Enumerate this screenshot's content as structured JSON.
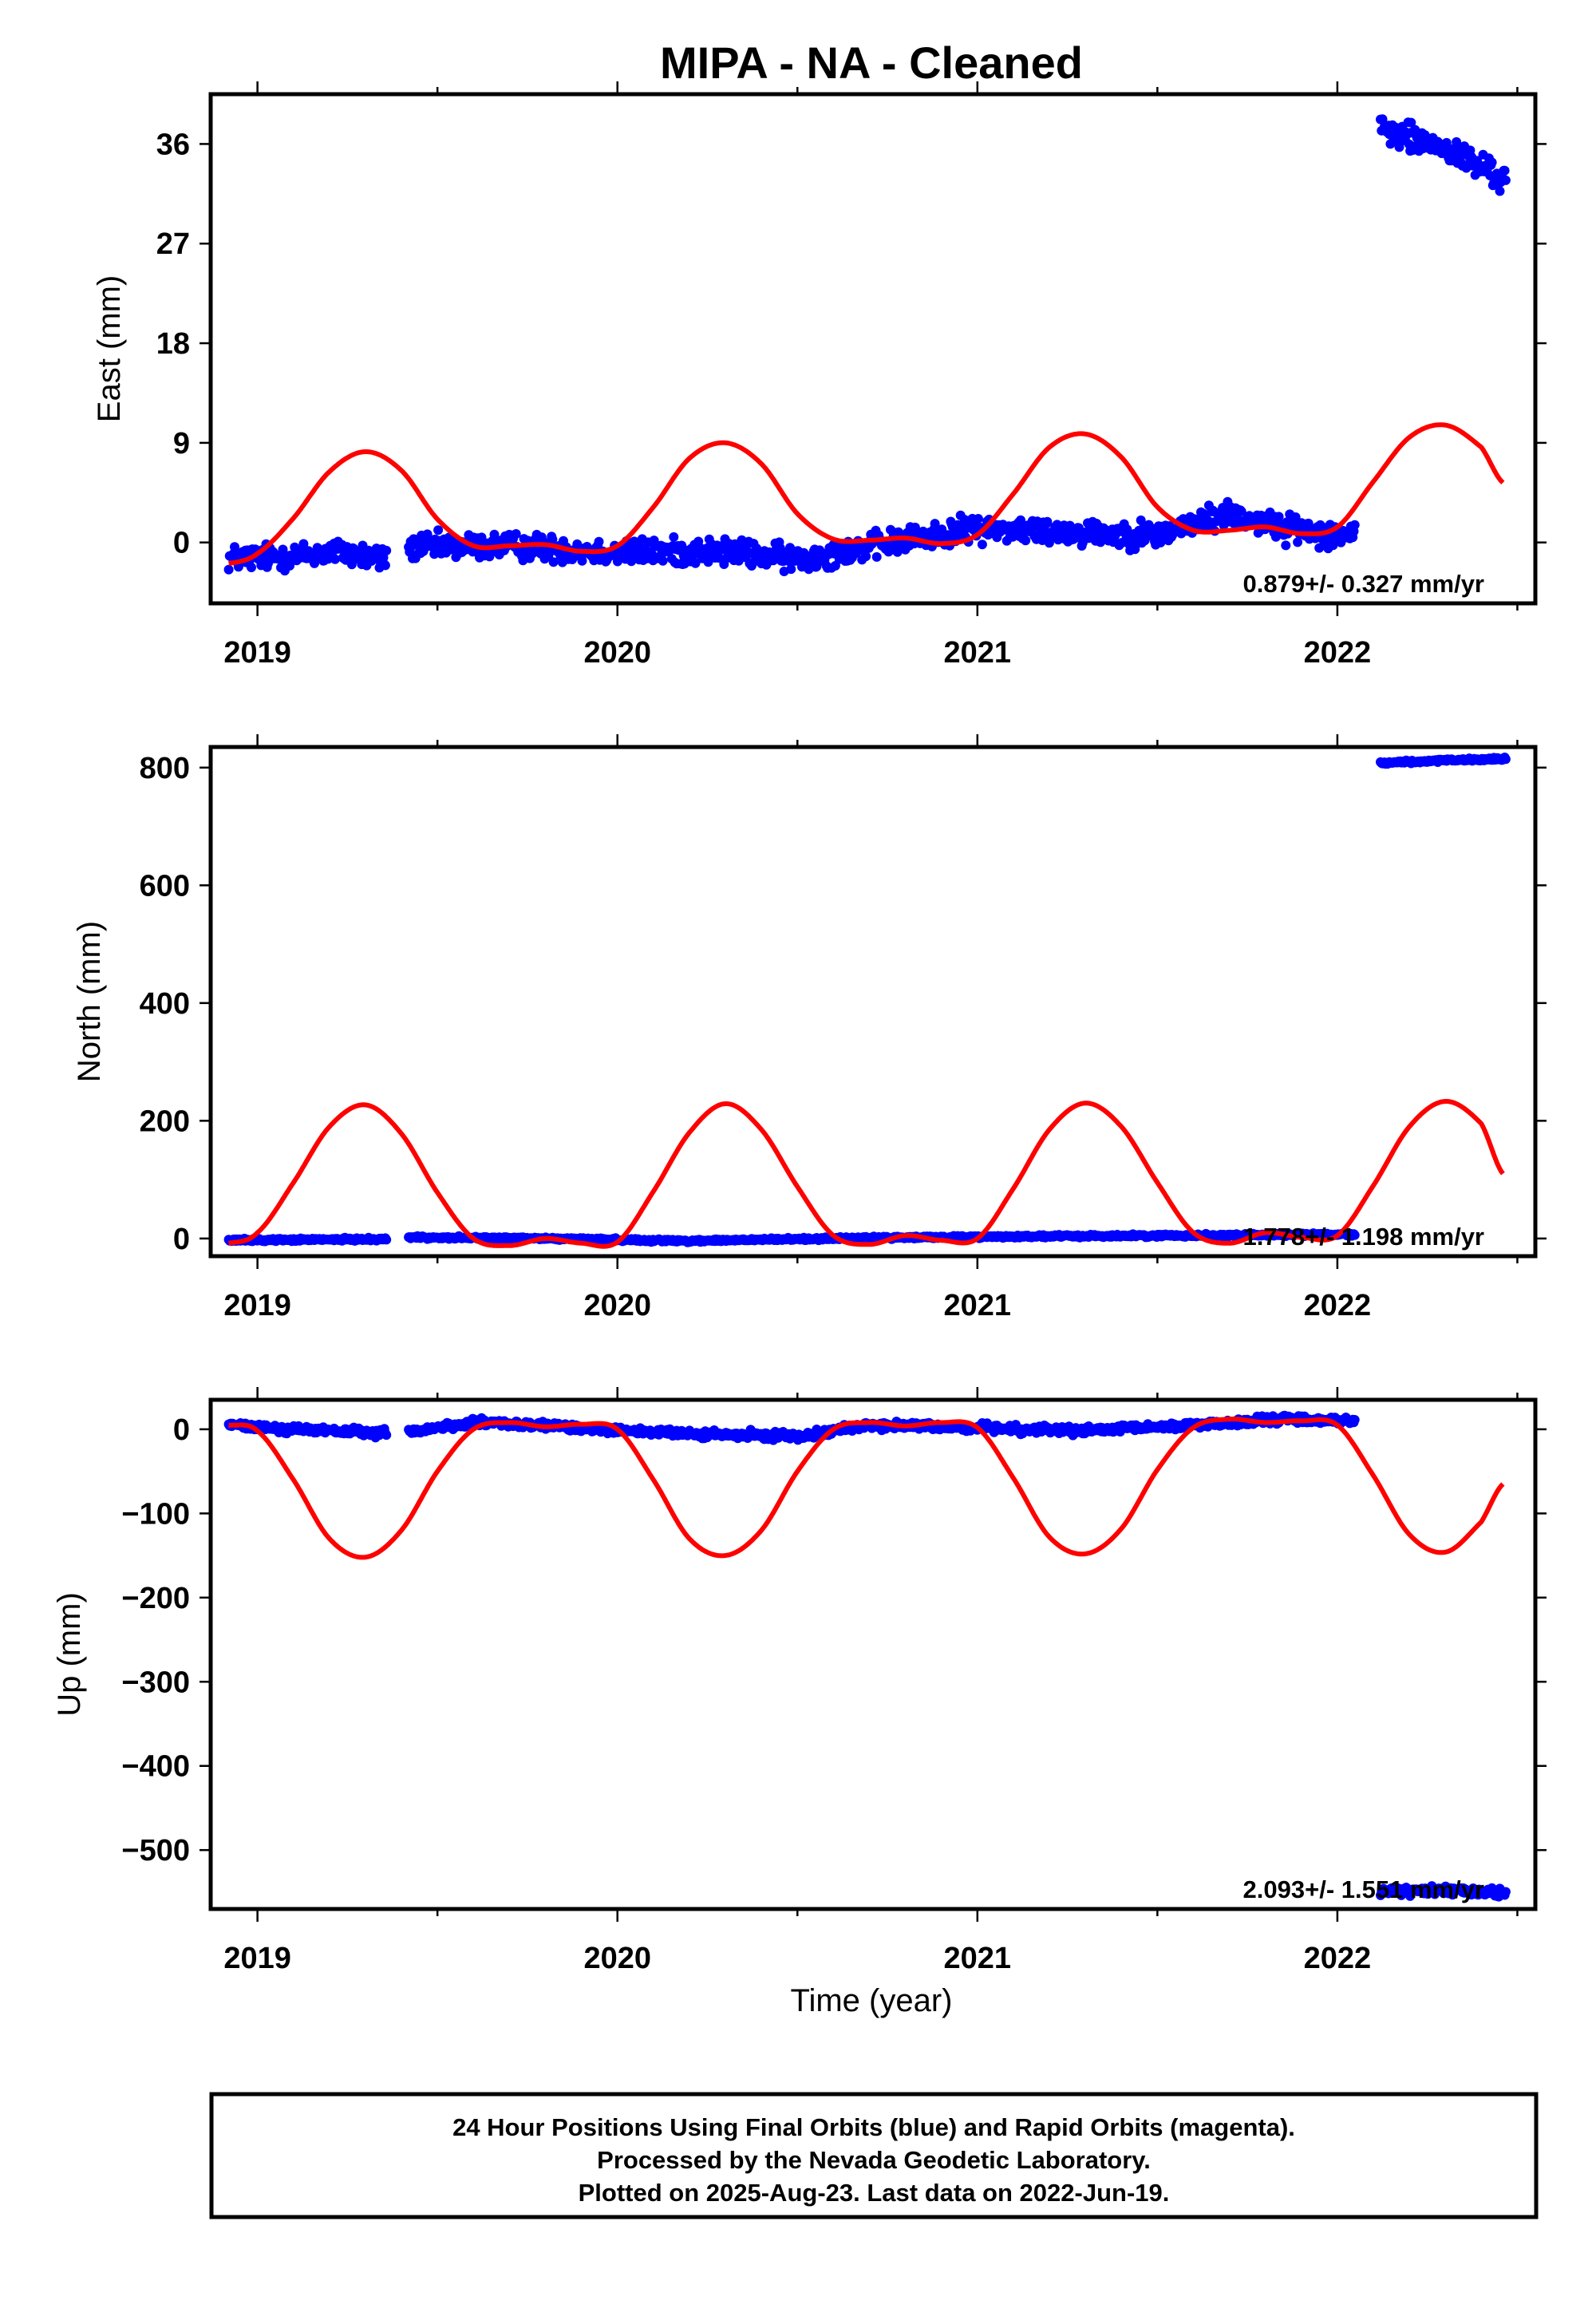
{
  "chart_data": {
    "title": "MIPA  - NA - Cleaned",
    "xlabel": "Time (year)",
    "xlim": [
      2018.87,
      2022.55
    ],
    "x_ticks": [
      2019,
      2020,
      2021,
      2022
    ],
    "x_tick_labels": [
      "2019",
      "2020",
      "2021",
      "2022"
    ],
    "x_minor_ticks": [
      2019.5,
      2020.5,
      2021.5,
      2022.5
    ],
    "panels": [
      {
        "id": "east",
        "type": "scatter",
        "ylabel": "East (mm)",
        "ylim": [
          -5.5,
          40.5
        ],
        "y_ticks": [
          0,
          9,
          18,
          27,
          36
        ],
        "y_tick_labels": [
          "0",
          "9",
          "18",
          "27",
          "36"
        ],
        "rate_label": "0.879+/- 0.327 mm/yr",
        "series": [
          {
            "kind": "points",
            "color": "#0000ff",
            "segments": [
              {
                "x": [
                  2018.92,
                  2019.12,
                  2019.22,
                  2019.36
                ],
                "y": [
                  -1.4,
                  -1.2,
                  -0.8,
                  -1.6
                ],
                "noise": 1.0
              },
              {
                "x": [
                  2019.42,
                  2019.7,
                  2020.0,
                  2020.3,
                  2020.5,
                  2020.8,
                  2021.0,
                  2021.2,
                  2021.5,
                  2021.7,
                  2021.85,
                  2022.05
                ],
                "y": [
                  -0.4,
                  -0.3,
                  -0.9,
                  -0.8,
                  -1.5,
                  0.2,
                  1.3,
                  1.0,
                  0.7,
                  2.6,
                  1.3,
                  0.6
                ],
                "noise": 1.0
              },
              {
                "x": [
                  2022.12,
                  2022.3,
                  2022.47
                ],
                "y": [
                  37.3,
                  35.5,
                  32.8
                ],
                "noise": 1.1
              }
            ]
          },
          {
            "kind": "fit",
            "color": "#ff0000",
            "x": [
              2018.92,
              2019.0,
              2019.1,
              2019.2,
              2019.3,
              2019.4,
              2019.5,
              2019.6,
              2019.7,
              2019.8,
              2019.9,
              2020.0,
              2020.1,
              2020.2,
              2020.3,
              2020.4,
              2020.5,
              2020.6,
              2020.7,
              2020.8,
              2020.9,
              2021.0,
              2021.1,
              2021.2,
              2021.3,
              2021.4,
              2021.5,
              2021.6,
              2021.7,
              2021.8,
              2021.9,
              2022.0,
              2022.1,
              2022.2,
              2022.3,
              2022.4,
              2022.46
            ],
            "y": [
              -1.9,
              -1.0,
              2.2,
              6.4,
              8.2,
              6.5,
              2.1,
              -0.3,
              -0.3,
              -0.2,
              -0.8,
              -0.3,
              3.2,
              7.6,
              9.0,
              7.1,
              2.6,
              0.3,
              0.2,
              0.4,
              -0.1,
              0.7,
              4.4,
              8.6,
              9.8,
              7.7,
              3.2,
              1.1,
              1.1,
              1.4,
              0.8,
              1.4,
              5.5,
              9.5,
              10.6,
              8.6,
              5.4
            ]
          }
        ]
      },
      {
        "id": "north",
        "type": "scatter",
        "ylabel": "North (mm)",
        "ylim": [
          -30,
          835
        ],
        "y_ticks": [
          0,
          200,
          400,
          600,
          800
        ],
        "y_tick_labels": [
          "0",
          "200",
          "400",
          "600",
          "800"
        ],
        "rate_label": "1.778+/- 1.198 mm/yr",
        "series": [
          {
            "kind": "points",
            "color": "#0000ff",
            "segments": [
              {
                "x": [
                  2018.92,
                  2019.36
                ],
                "y": [
                  -3,
                  -1
                ],
                "noise": 2.0
              },
              {
                "x": [
                  2019.42,
                  2019.8,
                  2020.2,
                  2020.6,
                  2021.0,
                  2021.5,
                  2022.05
                ],
                "y": [
                  2,
                  0,
                  -4,
                  0,
                  3,
                  5,
                  7
                ],
                "noise": 2.0
              },
              {
                "x": [
                  2022.12,
                  2022.3,
                  2022.47
                ],
                "y": [
                  808,
                  812,
                  815
                ],
                "noise": 2.0
              }
            ]
          },
          {
            "kind": "fit",
            "color": "#ff0000",
            "x": [
              2018.92,
              2019.0,
              2019.1,
              2019.2,
              2019.3,
              2019.4,
              2019.5,
              2019.6,
              2019.7,
              2019.8,
              2019.9,
              2020.0,
              2020.1,
              2020.2,
              2020.3,
              2020.4,
              2020.5,
              2020.6,
              2020.7,
              2020.8,
              2020.9,
              2021.0,
              2021.1,
              2021.2,
              2021.3,
              2021.4,
              2021.5,
              2021.6,
              2021.7,
              2021.8,
              2021.9,
              2022.0,
              2022.1,
              2022.2,
              2022.3,
              2022.4,
              2022.46
            ],
            "y": [
              -8,
              10,
              95,
              190,
              227,
              178,
              78,
              0,
              -12,
              0,
              -8,
              -6,
              80,
              180,
              229,
              185,
              88,
              5,
              -10,
              5,
              -3,
              0,
              85,
              185,
              230,
              190,
              95,
              10,
              -8,
              10,
              2,
              5,
              90,
              190,
              233,
              195,
              110
            ]
          }
        ]
      },
      {
        "id": "up",
        "type": "scatter",
        "ylabel": "Up (mm)",
        "ylim": [
          -570,
          35
        ],
        "y_ticks": [
          0,
          -100,
          -200,
          -300,
          -400,
          -500
        ],
        "y_tick_labels": [
          "0",
          "−100",
          "−200",
          "−300",
          "−400",
          "−500"
        ],
        "rate_label": "2.093+/- 1.551 mm/yr",
        "series": [
          {
            "kind": "points",
            "color": "#0000ff",
            "segments": [
              {
                "x": [
                  2018.92,
                  2019.1,
                  2019.36
                ],
                "y": [
                  5,
                  0,
                  -5
                ],
                "noise": 4.0
              },
              {
                "x": [
                  2019.42,
                  2019.6,
                  2019.9,
                  2020.2,
                  2020.5,
                  2020.7,
                  2021.0,
                  2021.3,
                  2021.6,
                  2021.85,
                  2022.05
                ],
                "y": [
                  -3,
                  8,
                  2,
                  -6,
                  -8,
                  5,
                  2,
                  -2,
                  5,
                  12,
                  10
                ],
                "noise": 4.0
              },
              {
                "x": [
                  2022.12,
                  2022.3,
                  2022.47
                ],
                "y": [
                  -550,
                  -547,
                  -552
                ],
                "noise": 4.0
              }
            ]
          },
          {
            "kind": "fit",
            "color": "#ff0000",
            "x": [
              2018.92,
              2019.0,
              2019.1,
              2019.2,
              2019.3,
              2019.4,
              2019.5,
              2019.6,
              2019.7,
              2019.8,
              2019.9,
              2020.0,
              2020.1,
              2020.2,
              2020.3,
              2020.4,
              2020.5,
              2020.6,
              2020.7,
              2020.8,
              2020.9,
              2021.0,
              2021.1,
              2021.2,
              2021.3,
              2021.4,
              2021.5,
              2021.6,
              2021.7,
              2021.8,
              2021.9,
              2022.0,
              2022.1,
              2022.2,
              2022.3,
              2022.4,
              2022.46
            ],
            "y": [
              5,
              -2,
              -60,
              -130,
              -152,
              -120,
              -50,
              0,
              8,
              3,
              6,
              0,
              -60,
              -130,
              -150,
              -120,
              -50,
              0,
              8,
              4,
              8,
              2,
              -58,
              -128,
              -148,
              -118,
              -48,
              2,
              12,
              8,
              10,
              5,
              -55,
              -125,
              -146,
              -110,
              -65
            ]
          }
        ]
      }
    ]
  },
  "footer": {
    "line1": "24 Hour Positions Using Final Orbits (blue) and Rapid Orbits (magenta).",
    "line2": "Processed by the Nevada Geodetic Laboratory.",
    "line3": "Plotted on 2025-Aug-23. Last data on 2022-Jun-19."
  }
}
